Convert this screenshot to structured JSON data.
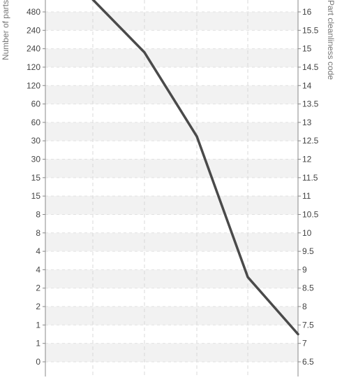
{
  "chart_data": {
    "type": "line",
    "title": "",
    "ylabel_left": "Number of parts",
    "ylabel_right": "Part cleanliness code",
    "xlabel": "",
    "y_right_range": [
      6.2,
      16.4
    ],
    "left_tick_labels": [
      "480",
      "240",
      "240",
      "120",
      "120",
      "60",
      "60",
      "30",
      "30",
      "15",
      "15",
      "8",
      "8",
      "4",
      "4",
      "2",
      "2",
      "1",
      "1",
      "0"
    ],
    "right_tick_labels": [
      "16",
      "15.5",
      "15",
      "14.5",
      "14",
      "13.5",
      "13",
      "12.5",
      "12",
      "11.5",
      "11",
      "10.5",
      "10",
      "9.5",
      "9",
      "8.5",
      "8",
      "7.5",
      "7",
      "6.5"
    ],
    "right_tick_values": [
      16,
      15.5,
      15,
      14.5,
      14,
      13.5,
      13,
      12.5,
      12,
      11.5,
      11,
      10.5,
      10,
      9.5,
      9,
      8.5,
      8,
      7.5,
      7,
      6.5
    ],
    "grid": true,
    "series": [
      {
        "points": [
          {
            "x": 1.95,
            "y": 16.4
          },
          {
            "x": 3,
            "y": 14.9
          },
          {
            "x": 4,
            "y": 12.62
          },
          {
            "x": 5,
            "y": 8.8
          },
          {
            "x": 6,
            "y": 7.25
          }
        ],
        "color": "#4a4a4a"
      }
    ]
  }
}
